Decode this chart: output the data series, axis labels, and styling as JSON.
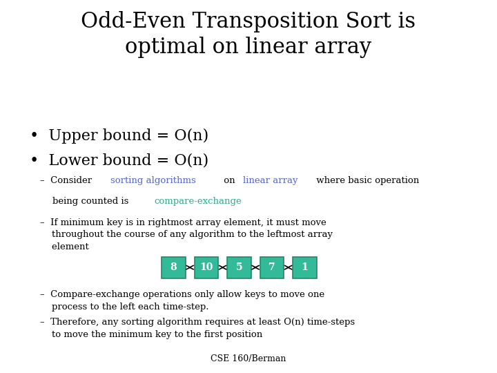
{
  "title": "Odd-Even Transposition Sort is\noptimal on linear array",
  "background_color": "#ffffff",
  "title_fontsize": 22,
  "title_color": "#000000",
  "bullet1": "Upper bound = O(n)",
  "bullet2": "Lower bound = O(n)",
  "bullet_fontsize": 16,
  "array_values": [
    "8",
    "10",
    "5",
    "7",
    "1"
  ],
  "array_bg_color": "#33bb99",
  "array_text_color": "#ffffff",
  "array_border_color": "#228866",
  "sub_fontsize": 9.5,
  "color_algo": "#5566cc",
  "color_array": "#5566cc",
  "color_compare": "#33aa88",
  "footer": "CSE 160/Berman",
  "footer_fontsize": 9
}
